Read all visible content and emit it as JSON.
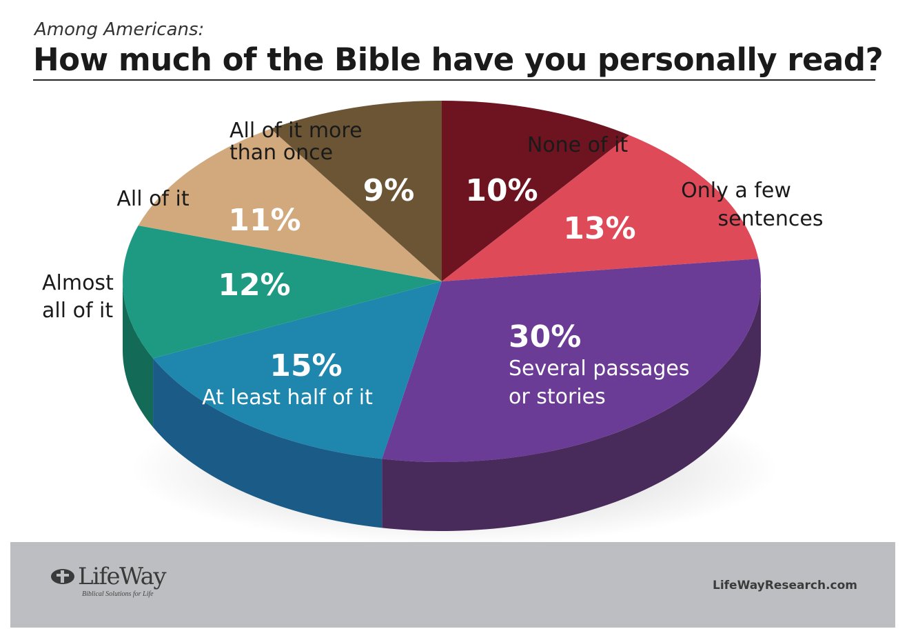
{
  "header": {
    "subtitle": "Among Americans:",
    "title": "How much of the Bible have you personally read?"
  },
  "chart_data": {
    "type": "pie",
    "style": "3d",
    "slices": [
      {
        "label": "None of it",
        "value": 10,
        "value_label": "10%",
        "color": "#6e1420",
        "side_color": "#4d0e16"
      },
      {
        "label": "Only a few sentences",
        "value": 13,
        "value_label": "13%",
        "color": "#df4a58",
        "side_color": "#a8353f"
      },
      {
        "label": "Several passages or stories",
        "value": 30,
        "value_label": "30%",
        "color": "#6b3c96",
        "side_color": "#482a5b"
      },
      {
        "label": "At least half of it",
        "value": 15,
        "value_label": "15%",
        "color": "#1f87ad",
        "side_color": "#1a5b88"
      },
      {
        "label": "Almost all of it",
        "value": 12,
        "value_label": "12%",
        "color": "#1e9a82",
        "side_color": "#136a56"
      },
      {
        "label": "All of it",
        "value": 11,
        "value_label": "11%",
        "color": "#d2a97c",
        "side_color": "#a8845c"
      },
      {
        "label": "All of it more than once",
        "value": 9,
        "value_label": "9%",
        "color": "#6b5535",
        "side_color": "#4b3b24"
      }
    ],
    "legend": "none"
  },
  "footer": {
    "logo_text": "LifeWay",
    "logo_tagline": "Biblical Solutions for Life",
    "website": "LifeWayResearch.com"
  }
}
